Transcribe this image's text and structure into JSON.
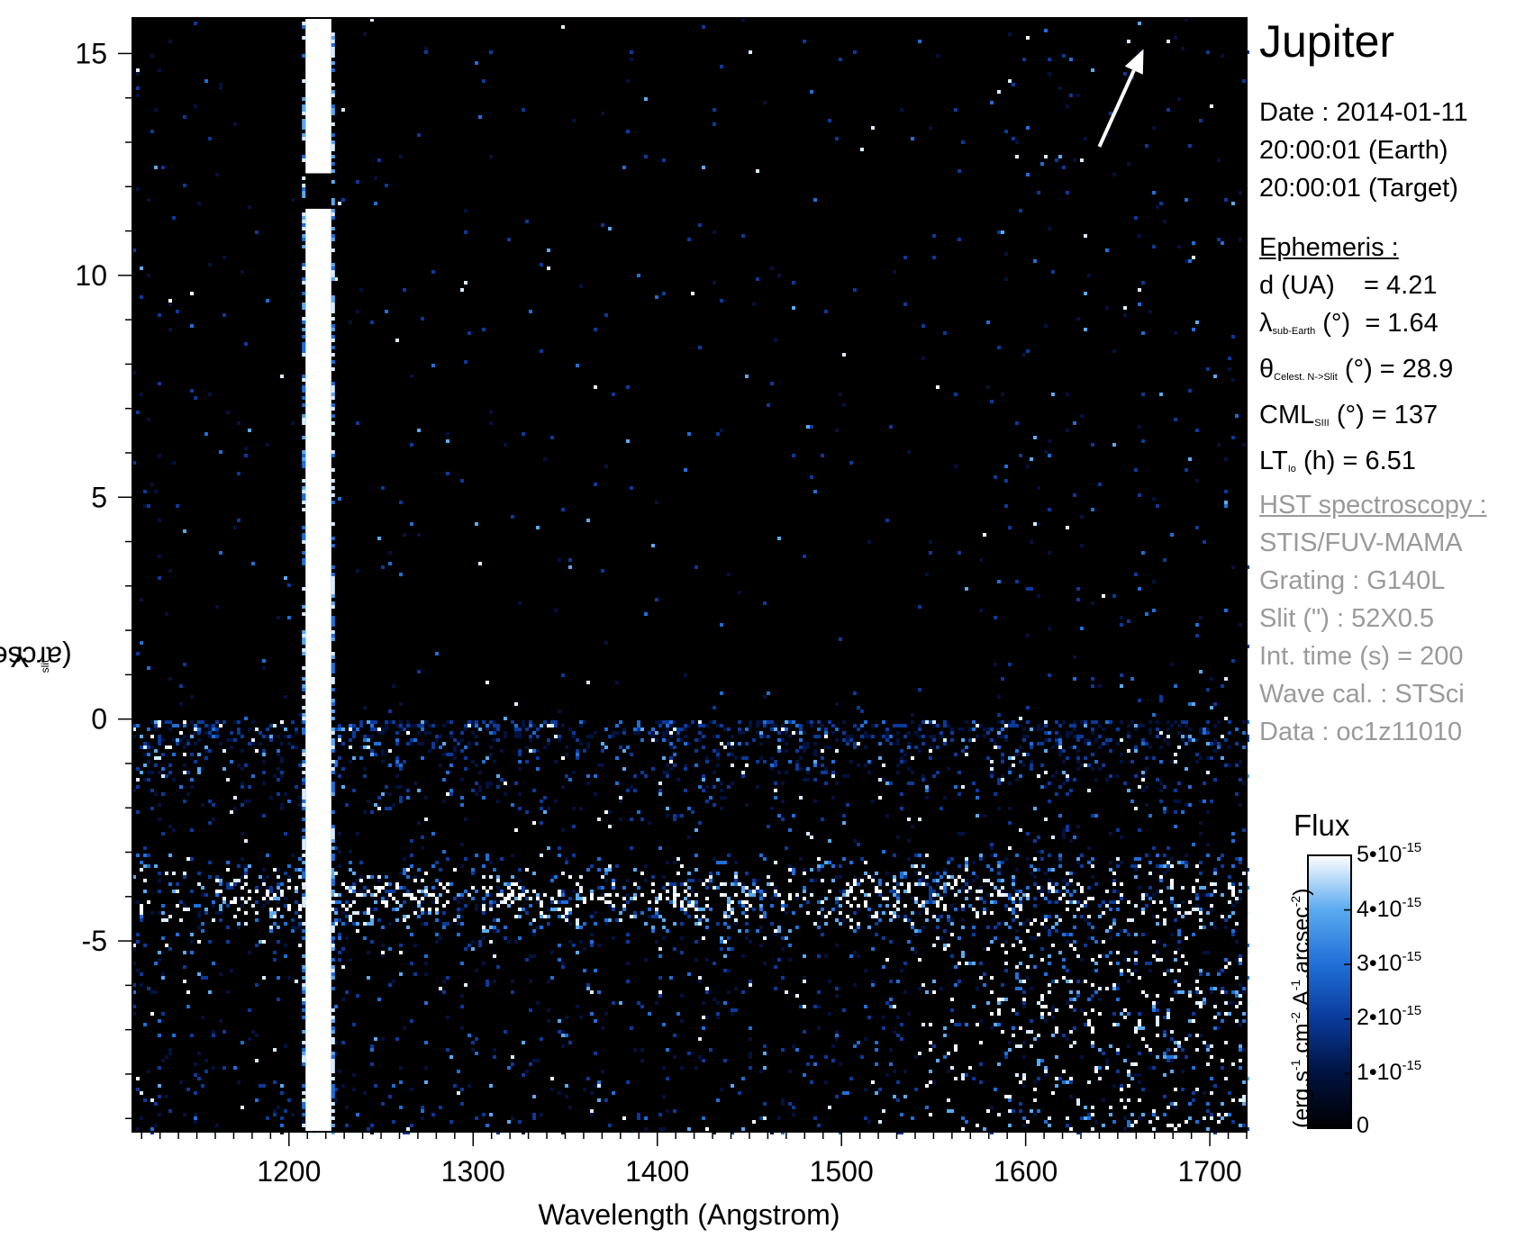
{
  "chart_data": {
    "type": "heatmap",
    "xlabel": "Wavelength (Angstrom)",
    "ylabel": "Y",
    "ylabel_sub": "slit",
    "ylabel_unit": "(arcsec)",
    "xlim": [
      1115,
      1720
    ],
    "ylim": [
      -9.3,
      15.8
    ],
    "x_ticks": [
      1200,
      1300,
      1400,
      1500,
      1600,
      1700
    ],
    "y_ticks": [
      15,
      10,
      5,
      0,
      -5
    ],
    "colorscale": [
      "#000000",
      "#00123f",
      "#0a3a9a",
      "#1f6fd8",
      "#5aaaf0",
      "#d8ecff",
      "#ffffff"
    ],
    "features": [
      {
        "label": "Lyman-alpha geocoronal line",
        "x_center": 1216,
        "x_width": 14,
        "y_gaps": [
          [
            11.5,
            12.3
          ]
        ]
      },
      {
        "label": "Auroral emission band",
        "y_center": -4,
        "y_half_width": 0.7,
        "x_range": [
          1150,
          1620
        ]
      },
      {
        "label": "Extended emission",
        "y_range": [
          -9.3,
          -3
        ],
        "x_range": [
          1150,
          1720
        ]
      }
    ],
    "arrow": {
      "x_start": 1640,
      "y_start": 12.9,
      "x_end": 1664,
      "y_end": 15.1
    },
    "colorbar": {
      "title": "Flux",
      "label": "(erg.s-1.cm-2.A-1.arcsec-2)",
      "range": [
        0,
        5e-15
      ],
      "ticks": [
        "0",
        "1•10-15",
        "2•10-15",
        "3•10-15",
        "4•10-15",
        "5•10-15"
      ]
    }
  },
  "info": {
    "title": "Jupiter",
    "date_line": "Date : 2014-01-11",
    "earth_time": "20:00:01 (Earth)",
    "target_time": "20:00:01 (Target)",
    "ephemeris_header": "Ephemeris :",
    "ephemeris": [
      {
        "label": "d (UA)",
        "value": "= 4.21"
      },
      {
        "label": "λ",
        "sub": "sub-Earth",
        "unit": "(°)",
        "value": "= 1.64"
      },
      {
        "label": "θ",
        "sub": "Celest. N->Slit",
        "unit": "(°)",
        "value": "= 28.9"
      },
      {
        "label": "CML",
        "sub": "SIII",
        "unit": "(°)",
        "value": "= 137"
      },
      {
        "label": "LT",
        "sub": "Io",
        "unit": "(h)",
        "value": "= 6.51"
      }
    ],
    "hst_header": "HST spectroscopy :",
    "hst": [
      "STIS/FUV-MAMA",
      "Grating : G140L",
      "Slit (\") : 52X0.5",
      "Int. time (s) = 200",
      "Wave cal. : STSci",
      "Data : oc1z11010"
    ]
  }
}
